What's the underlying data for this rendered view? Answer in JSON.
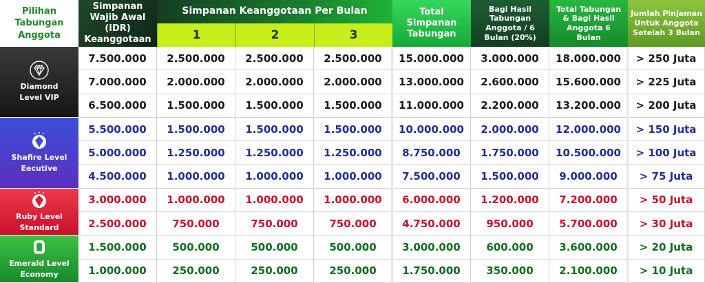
{
  "header": {
    "tier": "Pilihan Tabungan Anggota",
    "simpanan_wajib": "Simpanan Wajib Awal (IDR) Keanggotaan",
    "per_bulan": "Simpanan Keanggotaan Per Bulan",
    "months": [
      "1",
      "2",
      "3"
    ],
    "total_simpanan": "Total Simpanan Tabungan",
    "bagi_hasil": "Bagi Hasil Tabungan Anggota / 6 Bulan (20%)",
    "total_bagi": "Total Tabungan & Bagi Hasil Anggota 6 Bulan",
    "pinjaman": "Jumlah Pinjaman Untuk Anggota Setelah 3 Bulan"
  },
  "tiers": [
    {
      "key": "diamond",
      "label": "Diamond Level VIP",
      "icon": "diamond-icon",
      "color": "#1a1a1a",
      "rows": [
        [
          "7.500.000",
          "2.500.000",
          "2.500.000",
          "2.500.000",
          "15.000.000",
          "3.000.000",
          "18.000.000",
          "> 250 Juta"
        ],
        [
          "7.000.000",
          "2.000.000",
          "2.000.000",
          "2.000.000",
          "13.000.000",
          "2.600.000",
          "15.600.000",
          "> 225 Juta"
        ],
        [
          "6.500.000",
          "1.500.000",
          "1.500.000",
          "1.500.000",
          "11.000.000",
          "2.200.000",
          "13.200.000",
          "> 200 Juta"
        ]
      ]
    },
    {
      "key": "shafire",
      "label": "Shafire Level Eecutive",
      "icon": "sapphire-gem-icon",
      "color": "#1f2d96",
      "rows": [
        [
          "5.500.000",
          "1.500.000",
          "1.500.000",
          "1.500.000",
          "10.000.000",
          "2.000.000",
          "12.000.000",
          "> 150 Juta"
        ],
        [
          "5.000.000",
          "1.250.000",
          "1.250.000",
          "1.250.000",
          "8.750.000",
          "1.750.000",
          "10.500.000",
          "> 100 Juta"
        ],
        [
          "4.500.000",
          "1.000.000",
          "1.000.000",
          "1.000.000",
          "7.500.000",
          "1.500.000",
          "9.000.000",
          "> 75 Juta"
        ]
      ]
    },
    {
      "key": "ruby",
      "label": "Ruby Level Standard",
      "icon": "ruby-gem-icon",
      "color": "#c8102c",
      "rows": [
        [
          "3.000.000",
          "1.000.000",
          "1.000.000",
          "1.000.000",
          "6.000.000",
          "1.200.000",
          "7.200.000",
          "> 50 Juta"
        ],
        [
          "2.500.000",
          "750.000",
          "750.000",
          "750.000",
          "4.750.000",
          "950.000",
          "5.700.000",
          "> 30 Juta"
        ]
      ]
    },
    {
      "key": "emerald",
      "label": "Emerald Level Economy",
      "icon": "emerald-gem-icon",
      "color": "#0f6d1c",
      "rows": [
        [
          "1.500.000",
          "500.000",
          "500.000",
          "500.000",
          "3.000.000",
          "600.000",
          "3.600.000",
          "> 20 Juta"
        ],
        [
          "1.000.000",
          "250.000",
          "250.000",
          "250.000",
          "1.750.000",
          "350.000",
          "2.100.000",
          "> 10 Juta"
        ]
      ]
    }
  ]
}
